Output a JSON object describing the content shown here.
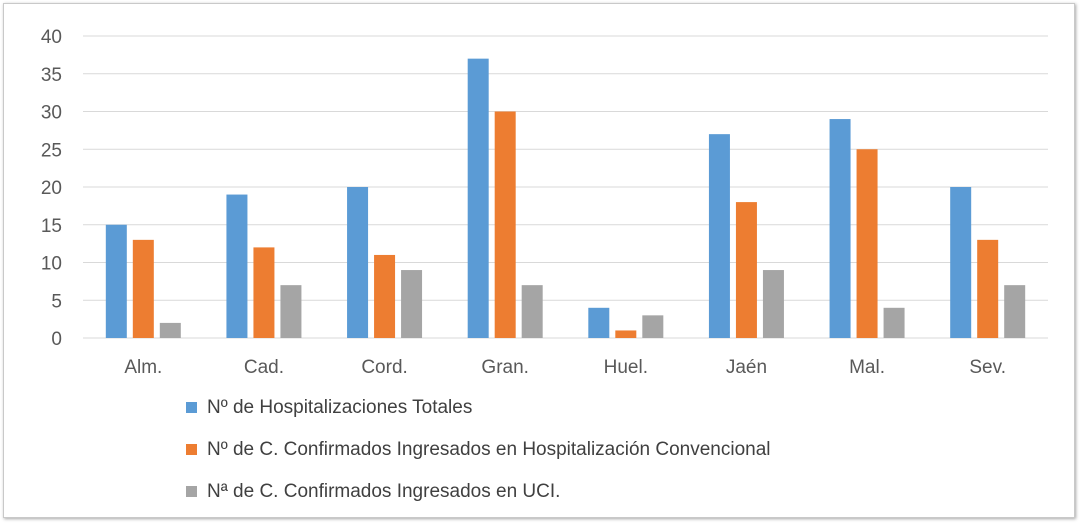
{
  "chart_data": {
    "type": "bar",
    "categories": [
      "Alm.",
      "Cad.",
      "Cord.",
      "Gran.",
      "Huel.",
      "Jaén",
      "Mal.",
      "Sev."
    ],
    "series": [
      {
        "name": "Nº de Hospitalizaciones Totales",
        "color": "#5b9bd5",
        "values": [
          15,
          19,
          20,
          37,
          4,
          27,
          29,
          20
        ]
      },
      {
        "name": "Nº de C. Confirmados Ingresados en Hospitalización Convencional",
        "color": "#ed7d31",
        "values": [
          13,
          12,
          11,
          30,
          1,
          18,
          25,
          13
        ]
      },
      {
        "name": "Nª de C. Confirmados Ingresados en UCI.",
        "color": "#a5a5a5",
        "values": [
          2,
          7,
          9,
          7,
          3,
          9,
          4,
          7
        ]
      }
    ],
    "yticks": [
      "0",
      "5",
      "10",
      "15",
      "20",
      "25",
      "30",
      "35",
      "40"
    ],
    "ylim": [
      0,
      40
    ],
    "grid": true,
    "legend_position": "bottom",
    "gridline_color": "#d9d9d9"
  }
}
